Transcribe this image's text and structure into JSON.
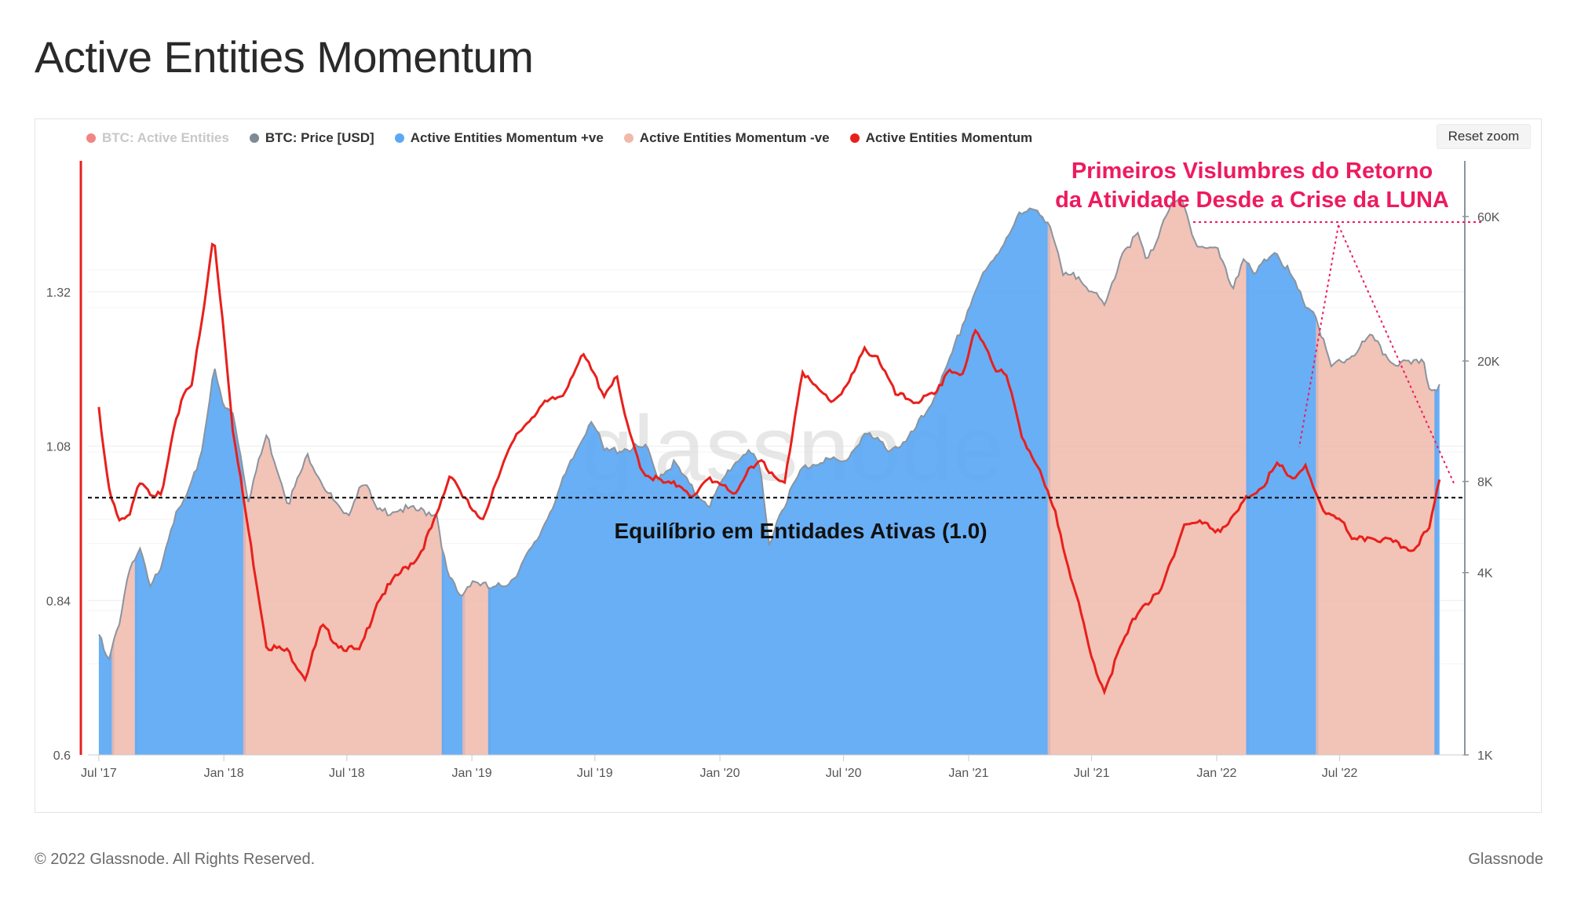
{
  "page": {
    "title": "Active Entities Momentum",
    "copyright": "© 2022 Glassnode. All Rights Reserved.",
    "brand": "Glassnode",
    "reset_zoom": "Reset zoom",
    "watermark": "glassnode"
  },
  "colors": {
    "positive": "#5ba8f5",
    "negative": "#f0b9aa",
    "momentum": "#e8201c",
    "price": "#8a949e",
    "annotation": "#ee1a5f",
    "axis_left": "#e8201c",
    "axis_right": "#8a949e"
  },
  "chart_data": {
    "type": "area",
    "title": "Active Entities Momentum",
    "legend_placement": "top-left",
    "legend": [
      {
        "label": "BTC: Active Entities",
        "color": "#e8201c",
        "hidden": true
      },
      {
        "label": "BTC: Price [USD]",
        "color": "#7f8a94",
        "hidden": false
      },
      {
        "label": "Active Entities Momentum +ve",
        "color": "#5ba8f5",
        "hidden": false
      },
      {
        "label": "Active Entities Momentum -ve",
        "color": "#f0b9aa",
        "hidden": false
      },
      {
        "label": "Active Entities Momentum",
        "color": "#e8201c",
        "hidden": false
      }
    ],
    "x_ticks": [
      "Jul '17",
      "Jan '18",
      "Jul '18",
      "Jan '19",
      "Jul '19",
      "Jan '20",
      "Jul '20",
      "Jan '21",
      "Jul '21",
      "Jan '22",
      "Jul '22"
    ],
    "x_range": [
      "2017-06-15",
      "2022-12-31"
    ],
    "y_left": {
      "ticks": [
        "0.6",
        "0.84",
        "1.08",
        "1.32"
      ],
      "range": [
        0.6,
        1.52
      ]
    },
    "y_right": {
      "ticks": [
        "1K",
        "4K",
        "8K",
        "20K",
        "60K"
      ],
      "scale": "log",
      "range": [
        1000,
        90000
      ]
    },
    "grid": true,
    "equilibrium": {
      "value": 1.0,
      "label": "Equilíbrio em Entidades Ativas (1.0)"
    },
    "annotation": {
      "line1": "Primeiros Vislumbres do Retorno",
      "line2": "da Atividade Desde a Crise da LUNA"
    },
    "series": [
      {
        "name": "BTC: Price [USD]",
        "axis": "right",
        "points": [
          [
            "2017-07-01",
            2500
          ],
          [
            "2017-07-15",
            2000
          ],
          [
            "2017-08-01",
            2800
          ],
          [
            "2017-08-15",
            4200
          ],
          [
            "2017-09-01",
            4700
          ],
          [
            "2017-09-15",
            3500
          ],
          [
            "2017-10-01",
            4300
          ],
          [
            "2017-10-15",
            5700
          ],
          [
            "2017-11-01",
            6700
          ],
          [
            "2017-11-15",
            7800
          ],
          [
            "2017-12-01",
            10500
          ],
          [
            "2017-12-17",
            19000
          ],
          [
            "2018-01-01",
            14000
          ],
          [
            "2018-01-15",
            13500
          ],
          [
            "2018-02-06",
            7000
          ],
          [
            "2018-03-05",
            11400
          ],
          [
            "2018-04-06",
            6800
          ],
          [
            "2018-05-05",
            9800
          ],
          [
            "2018-06-01",
            7500
          ],
          [
            "2018-06-29",
            6000
          ],
          [
            "2018-07-25",
            8200
          ],
          [
            "2018-08-15",
            6300
          ],
          [
            "2018-09-15",
            6500
          ],
          [
            "2018-10-15",
            6400
          ],
          [
            "2018-11-10",
            6300
          ],
          [
            "2018-11-25",
            4000
          ],
          [
            "2018-12-15",
            3300
          ],
          [
            "2019-01-01",
            3800
          ],
          [
            "2019-02-01",
            3500
          ],
          [
            "2019-03-01",
            3800
          ],
          [
            "2019-04-05",
            5000
          ],
          [
            "2019-05-15",
            8000
          ],
          [
            "2019-06-26",
            13000
          ],
          [
            "2019-07-15",
            10000
          ],
          [
            "2019-08-15",
            10300
          ],
          [
            "2019-09-15",
            10300
          ],
          [
            "2019-10-01",
            8300
          ],
          [
            "2019-10-26",
            9200
          ],
          [
            "2019-11-20",
            7600
          ],
          [
            "2019-12-18",
            6700
          ],
          [
            "2020-01-15",
            8800
          ],
          [
            "2020-02-12",
            10300
          ],
          [
            "2020-03-01",
            8600
          ],
          [
            "2020-03-13",
            5000
          ],
          [
            "2020-04-01",
            6500
          ],
          [
            "2020-05-01",
            8800
          ],
          [
            "2020-06-01",
            9500
          ],
          [
            "2020-07-01",
            9200
          ],
          [
            "2020-08-01",
            11500
          ],
          [
            "2020-09-05",
            10300
          ],
          [
            "2020-10-01",
            10700
          ],
          [
            "2020-11-01",
            13700
          ],
          [
            "2020-12-01",
            19000
          ],
          [
            "2020-12-27",
            28000
          ],
          [
            "2021-01-15",
            36000
          ],
          [
            "2021-02-10",
            44000
          ],
          [
            "2021-03-13",
            60000
          ],
          [
            "2021-04-14",
            63500
          ],
          [
            "2021-05-01",
            56000
          ],
          [
            "2021-05-20",
            38000
          ],
          [
            "2021-06-15",
            38000
          ],
          [
            "2021-07-20",
            30000
          ],
          [
            "2021-08-15",
            46000
          ],
          [
            "2021-09-07",
            52000
          ],
          [
            "2021-09-21",
            42000
          ],
          [
            "2021-10-20",
            63000
          ],
          [
            "2021-11-10",
            68000
          ],
          [
            "2021-12-04",
            48000
          ],
          [
            "2022-01-01",
            47000
          ],
          [
            "2022-01-24",
            35000
          ],
          [
            "2022-02-10",
            44000
          ],
          [
            "2022-02-24",
            38000
          ],
          [
            "2022-03-28",
            47000
          ],
          [
            "2022-04-15",
            40000
          ],
          [
            "2022-05-10",
            31000
          ],
          [
            "2022-05-25",
            29000
          ],
          [
            "2022-06-18",
            19000
          ],
          [
            "2022-07-15",
            20500
          ],
          [
            "2022-08-15",
            24000
          ],
          [
            "2022-09-15",
            20000
          ],
          [
            "2022-10-15",
            19300
          ],
          [
            "2022-11-01",
            20500
          ],
          [
            "2022-11-09",
            16500
          ],
          [
            "2022-11-25",
            16500
          ]
        ]
      },
      {
        "name": "Active Entities Momentum",
        "axis": "left",
        "points": [
          [
            "2017-07-01",
            1.14
          ],
          [
            "2017-07-15",
            1.02
          ],
          [
            "2017-08-01",
            0.96
          ],
          [
            "2017-08-15",
            0.97
          ],
          [
            "2017-09-01",
            1.03
          ],
          [
            "2017-09-15",
            1.01
          ],
          [
            "2017-10-01",
            1.0
          ],
          [
            "2017-10-15",
            1.08
          ],
          [
            "2017-11-01",
            1.16
          ],
          [
            "2017-11-15",
            1.18
          ],
          [
            "2017-12-01",
            1.28
          ],
          [
            "2017-12-17",
            1.41
          ],
          [
            "2018-01-01",
            1.26
          ],
          [
            "2018-01-15",
            1.1
          ],
          [
            "2018-02-06",
            0.95
          ],
          [
            "2018-03-05",
            0.77
          ],
          [
            "2018-04-06",
            0.76
          ],
          [
            "2018-05-01",
            0.72
          ],
          [
            "2018-05-25",
            0.8
          ],
          [
            "2018-06-20",
            0.77
          ],
          [
            "2018-07-20",
            0.76
          ],
          [
            "2018-08-15",
            0.84
          ],
          [
            "2018-09-15",
            0.88
          ],
          [
            "2018-10-15",
            0.91
          ],
          [
            "2018-11-10",
            0.97
          ],
          [
            "2018-12-01",
            1.04
          ],
          [
            "2018-12-20",
            1.0
          ],
          [
            "2019-01-15",
            0.96
          ],
          [
            "2019-02-10",
            1.04
          ],
          [
            "2019-03-10",
            1.1
          ],
          [
            "2019-04-10",
            1.14
          ],
          [
            "2019-05-15",
            1.16
          ],
          [
            "2019-06-01",
            1.2
          ],
          [
            "2019-06-15",
            1.22
          ],
          [
            "2019-07-15",
            1.16
          ],
          [
            "2019-08-01",
            1.19
          ],
          [
            "2019-08-20",
            1.1
          ],
          [
            "2019-09-10",
            1.04
          ],
          [
            "2019-10-15",
            1.02
          ],
          [
            "2019-11-05",
            1.02
          ],
          [
            "2019-11-25",
            1.0
          ],
          [
            "2019-12-15",
            1.03
          ],
          [
            "2020-01-10",
            1.02
          ],
          [
            "2020-01-25",
            1.0
          ],
          [
            "2020-02-15",
            1.05
          ],
          [
            "2020-03-05",
            1.06
          ],
          [
            "2020-03-20",
            1.03
          ],
          [
            "2020-04-05",
            1.02
          ],
          [
            "2020-05-01",
            1.2
          ],
          [
            "2020-05-20",
            1.17
          ],
          [
            "2020-06-15",
            1.15
          ],
          [
            "2020-07-10",
            1.18
          ],
          [
            "2020-08-01",
            1.23
          ],
          [
            "2020-08-20",
            1.22
          ],
          [
            "2020-09-15",
            1.16
          ],
          [
            "2020-10-15",
            1.15
          ],
          [
            "2020-11-15",
            1.16
          ],
          [
            "2020-12-01",
            1.2
          ],
          [
            "2020-12-25",
            1.19
          ],
          [
            "2021-01-10",
            1.26
          ],
          [
            "2021-01-25",
            1.24
          ],
          [
            "2021-02-10",
            1.2
          ],
          [
            "2021-02-25",
            1.19
          ],
          [
            "2021-03-20",
            1.1
          ],
          [
            "2021-04-15",
            1.04
          ],
          [
            "2021-05-10",
            0.97
          ],
          [
            "2021-06-10",
            0.84
          ],
          [
            "2021-07-01",
            0.75
          ],
          [
            "2021-07-20",
            0.7
          ],
          [
            "2021-08-10",
            0.76
          ],
          [
            "2021-09-10",
            0.83
          ],
          [
            "2021-10-10",
            0.85
          ],
          [
            "2021-10-25",
            0.9
          ],
          [
            "2021-11-15",
            0.96
          ],
          [
            "2021-12-10",
            0.96
          ],
          [
            "2022-01-01",
            0.95
          ],
          [
            "2022-01-20",
            0.96
          ],
          [
            "2022-02-15",
            1.0
          ],
          [
            "2022-03-10",
            1.02
          ],
          [
            "2022-04-01",
            1.05
          ],
          [
            "2022-04-25",
            1.03
          ],
          [
            "2022-05-10",
            1.05
          ],
          [
            "2022-06-05",
            0.98
          ],
          [
            "2022-07-01",
            0.97
          ],
          [
            "2022-07-20",
            0.93
          ],
          [
            "2022-08-15",
            0.94
          ],
          [
            "2022-09-15",
            0.93
          ],
          [
            "2022-10-15",
            0.92
          ],
          [
            "2022-11-10",
            0.95
          ],
          [
            "2022-11-25",
            1.03
          ]
        ]
      }
    ]
  }
}
